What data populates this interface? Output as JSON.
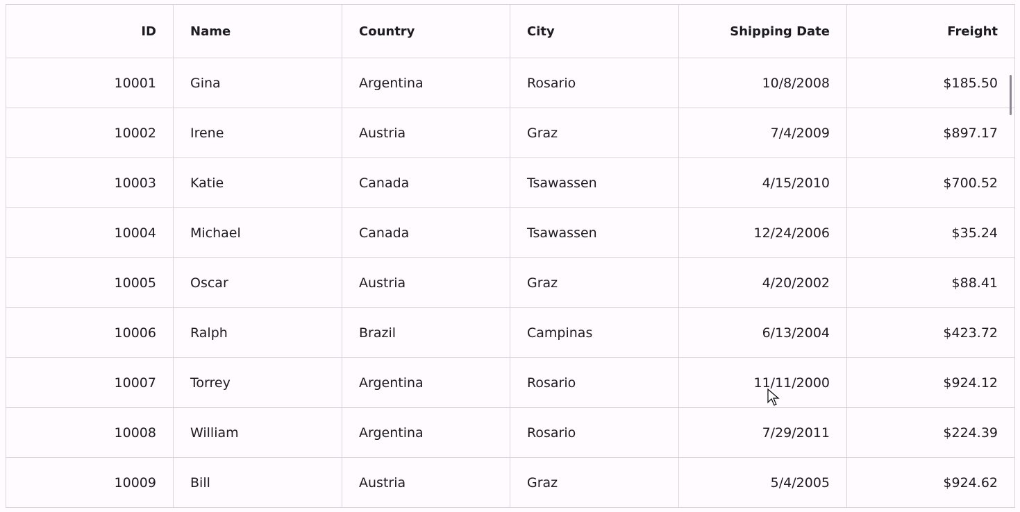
{
  "columns": [
    "ID",
    "Name",
    "Country",
    "City",
    "Shipping Date",
    "Freight"
  ],
  "rows": [
    [
      "10001",
      "Gina",
      "Argentina",
      "Rosario",
      "10/8/2008",
      "$185.50"
    ],
    [
      "10002",
      "Irene",
      "Austria",
      "Graz",
      "7/4/2009",
      "$897.17"
    ],
    [
      "10003",
      "Katie",
      "Canada",
      "Tsawassen",
      "4/15/2010",
      "$700.52"
    ],
    [
      "10004",
      "Michael",
      "Canada",
      "Tsawassen",
      "12/24/2006",
      "$35.24"
    ],
    [
      "10005",
      "Oscar",
      "Austria",
      "Graz",
      "4/20/2002",
      "$88.41"
    ],
    [
      "10006",
      "Ralph",
      "Brazil",
      "Campinas",
      "6/13/2004",
      "$423.72"
    ],
    [
      "10007",
      "Torrey",
      "Argentina",
      "Rosario",
      "11/11/2000",
      "$924.12"
    ],
    [
      "10008",
      "William",
      "Argentina",
      "Rosario",
      "7/29/2011",
      "$224.39"
    ],
    [
      "10009",
      "Bill",
      "Austria",
      "Graz",
      "5/4/2005",
      "$924.62"
    ]
  ]
}
